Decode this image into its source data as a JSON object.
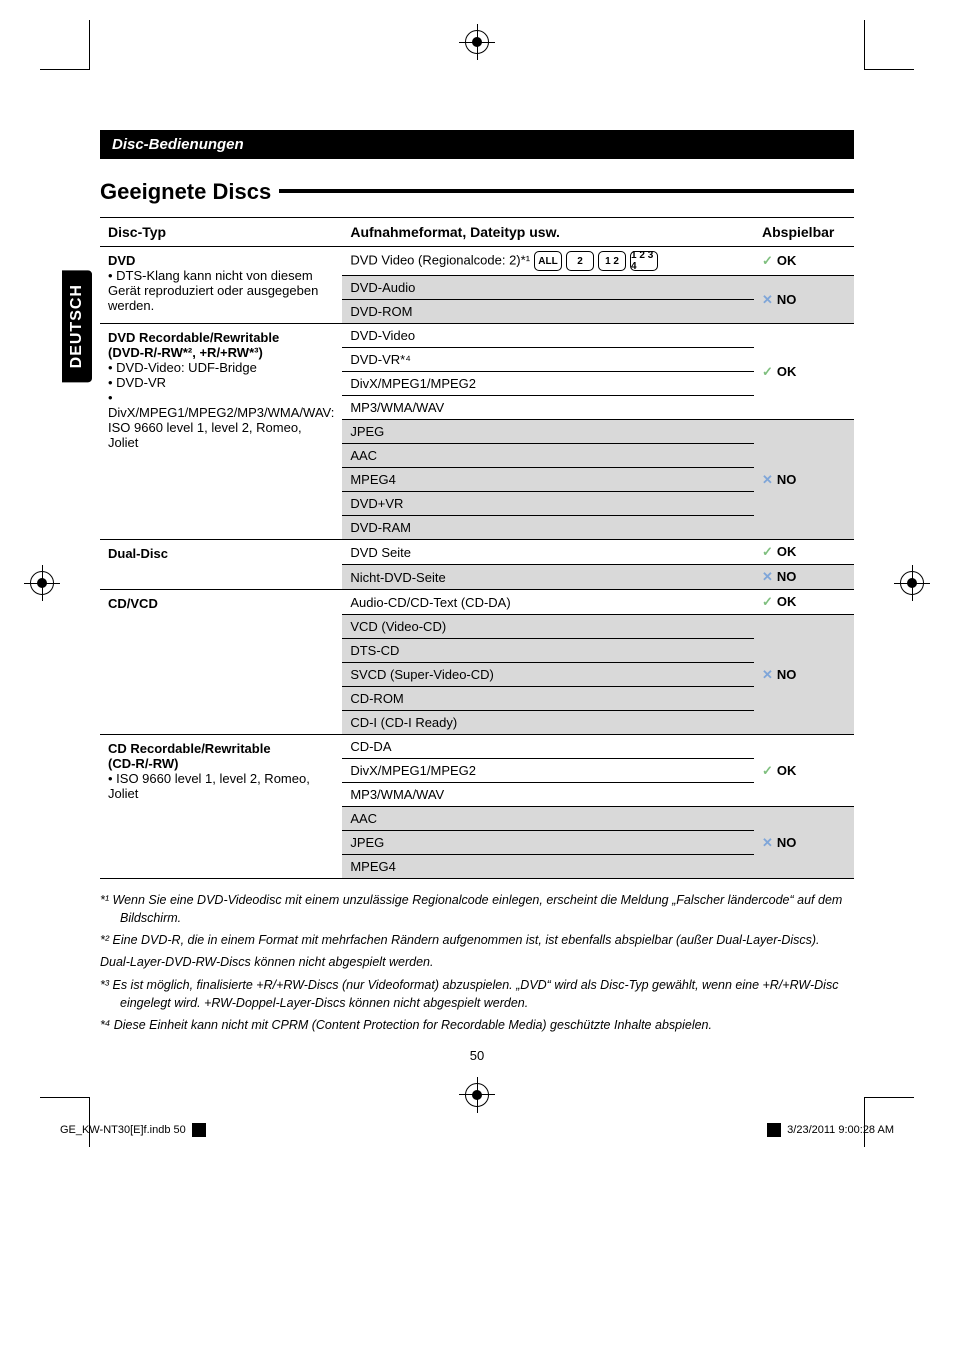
{
  "section_header": "Disc-Bedienungen",
  "side_tab": "DEUTSCH",
  "title": "Geeignete Discs",
  "columns": {
    "c1": "Disc-Typ",
    "c2": "Aufnahmeformat, Dateityp usw.",
    "c3": "Abspielbar"
  },
  "play": {
    "ok": "OK",
    "no": "NO"
  },
  "groups": [
    {
      "type_head": "DVD",
      "type_sub_lines": [
        "•  DTS-Klang kann nicht von diesem Gerät reproduziert oder ausgegeben werden."
      ],
      "rows": [
        {
          "format": "DVD Video (Regionalcode: 2)*¹",
          "icons": true,
          "play": "ok",
          "shaded": false
        },
        {
          "format": "DVD-Audio",
          "play": "no",
          "shaded": true
        },
        {
          "format": "DVD-ROM",
          "play": "no",
          "shaded": true,
          "merge_play_up": true
        }
      ]
    },
    {
      "type_head": "DVD Recordable/Rewritable",
      "type_sub_lines": [
        "(DVD-R/-RW*², +R/+RW*³)",
        "•  DVD-Video: UDF-Bridge",
        "•  DVD-VR",
        "•  DivX/MPEG1/MPEG2/MP3/WMA/WAV: ISO 9660 level 1, level 2, Romeo, Joliet"
      ],
      "rows": [
        {
          "format": "DVD-Video",
          "play": "ok",
          "shaded": false
        },
        {
          "format": "DVD-VR*⁴",
          "play": "ok",
          "shaded": false,
          "merge_play_up": true
        },
        {
          "format": "DivX/MPEG1/MPEG2",
          "play": "ok",
          "shaded": false,
          "merge_play_up": true
        },
        {
          "format": "MP3/WMA/WAV",
          "play": "ok",
          "shaded": false,
          "merge_play_up": true
        },
        {
          "format": "JPEG",
          "play": "no",
          "shaded": true
        },
        {
          "format": "AAC",
          "play": "no",
          "shaded": true,
          "merge_play_up": true
        },
        {
          "format": "MPEG4",
          "play": "no",
          "shaded": true,
          "merge_play_up": true
        },
        {
          "format": "DVD+VR",
          "play": "no",
          "shaded": true,
          "merge_play_up": true
        },
        {
          "format": "DVD-RAM",
          "play": "no",
          "shaded": true,
          "merge_play_up": true
        }
      ]
    },
    {
      "type_head": "Dual-Disc",
      "type_sub_lines": [],
      "rows": [
        {
          "format": "DVD Seite",
          "play": "ok",
          "shaded": false
        },
        {
          "format": "Nicht-DVD-Seite",
          "play": "no",
          "shaded": true
        }
      ]
    },
    {
      "type_head": "CD/VCD",
      "type_sub_lines": [],
      "rows": [
        {
          "format": "Audio-CD/CD-Text (CD-DA)",
          "play": "ok",
          "shaded": false
        },
        {
          "format": "VCD (Video-CD)",
          "play": "no",
          "shaded": true
        },
        {
          "format": "DTS-CD",
          "play": "no",
          "shaded": true,
          "merge_play_up": true
        },
        {
          "format": "SVCD (Super-Video-CD)",
          "play": "no",
          "shaded": true,
          "merge_play_up": true
        },
        {
          "format": "CD-ROM",
          "play": "no",
          "shaded": true,
          "merge_play_up": true
        },
        {
          "format": "CD-I (CD-I Ready)",
          "play": "no",
          "shaded": true,
          "merge_play_up": true
        }
      ]
    },
    {
      "type_head": "CD Recordable/Rewritable",
      "type_sub_lines": [
        "(CD-R/-RW)",
        "•  ISO 9660 level 1, level 2, Romeo, Joliet"
      ],
      "rows": [
        {
          "format": "CD-DA",
          "play": "ok",
          "shaded": false
        },
        {
          "format": "DivX/MPEG1/MPEG2",
          "play": "ok",
          "shaded": false,
          "merge_play_up": true
        },
        {
          "format": "MP3/WMA/WAV",
          "play": "ok",
          "shaded": false,
          "merge_play_up": true
        },
        {
          "format": "AAC",
          "play": "no",
          "shaded": true
        },
        {
          "format": "JPEG",
          "play": "no",
          "shaded": true,
          "merge_play_up": true
        },
        {
          "format": "MPEG4",
          "play": "no",
          "shaded": true,
          "merge_play_up": true
        }
      ]
    }
  ],
  "region_labels": [
    "ALL",
    "2",
    "1 2",
    "1 2\n3 4"
  ],
  "footnotes": [
    "*¹  Wenn Sie eine DVD-Videodisc mit einem unzulässige Regionalcode einlegen, erscheint die Meldung „Falscher ländercode“ auf dem Bildschirm.",
    "*²  Eine DVD-R, die in einem Format mit mehrfachen Rändern aufgenommen ist, ist ebenfalls abspielbar (außer Dual-Layer-Discs).",
    "     Dual-Layer-DVD-RW-Discs können nicht abgespielt werden.",
    "*³  Es ist möglich, finalisierte +R/+RW-Discs (nur Videoformat) abzuspielen. „DVD“ wird als Disc-Typ gewählt, wenn eine +R/+RW-Disc eingelegt wird. +RW-Doppel-Layer-Discs können nicht abgespielt werden.",
    "*⁴  Diese Einheit kann nicht mit CPRM (Content Protection for Recordable Media) geschützte Inhalte abspielen."
  ],
  "page_number": "50",
  "footer": {
    "file": "GE_KW-NT30[E]f.indb   50",
    "timestamp": "3/23/2011   9:00:28 AM"
  }
}
